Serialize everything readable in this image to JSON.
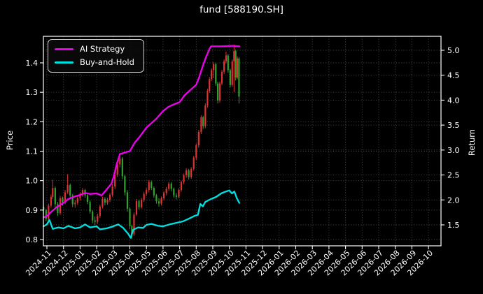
{
  "title": "fund [588190.SH]",
  "axes": {
    "x": {
      "tick_labels": [
        "2024-11",
        "2024-12",
        "2025-01",
        "2025-02",
        "2025-03",
        "2025-04",
        "2025-05",
        "2025-06",
        "2025-07",
        "2025-08",
        "2025-09",
        "2025-10",
        "2025-11",
        "2025-12",
        "2026-01",
        "2026-02",
        "2026-03",
        "2026-04",
        "2026-05",
        "2026-06",
        "2026-07",
        "2026-08",
        "2026-09",
        "2026-10"
      ]
    },
    "y_left": {
      "label": "Price",
      "ticks": [
        0.8,
        0.9,
        1.0,
        1.1,
        1.2,
        1.3,
        1.4
      ],
      "range": [
        0.779,
        1.49
      ]
    },
    "y_right": {
      "label": "Return",
      "ticks": [
        1.5,
        2.0,
        2.5,
        3.0,
        3.5,
        4.0,
        4.5,
        5.0
      ],
      "range": [
        1.08,
        5.28
      ]
    }
  },
  "legend": {
    "items": [
      {
        "label": "AI Strategy",
        "color": "#ee00ee"
      },
      {
        "label": "Buy-and-Hold",
        "color": "#00e0e0"
      }
    ]
  },
  "colors": {
    "background": "#000000",
    "text": "#ffffff",
    "spine": "#ffffff",
    "grid": "#666666",
    "candle_up": "#dd3333",
    "candle_down": "#2fa12f",
    "ai": "#ee00ee",
    "bh": "#00e0e0"
  },
  "chart_data": {
    "type": "candlestick+line",
    "title": "fund [588190.SH]",
    "x_unit": "months since 2024-11 tick (0 = 2024-11, 12 = 2025-11)",
    "grid": true,
    "legend_position": "upper left",
    "series": [
      {
        "name": "AI Strategy",
        "type": "line",
        "axis": "right",
        "color": "#ee00ee",
        "points": [
          [
            -0.2,
            1.65
          ],
          [
            0,
            1.68
          ],
          [
            0.3,
            1.77
          ],
          [
            0.6,
            1.86
          ],
          [
            1,
            1.94
          ],
          [
            1.3,
            2.02
          ],
          [
            1.6,
            2.06
          ],
          [
            2,
            2.1
          ],
          [
            2.3,
            2.14
          ],
          [
            2.6,
            2.12
          ],
          [
            3,
            2.13
          ],
          [
            3.3,
            2.09
          ],
          [
            3.6,
            2.21
          ],
          [
            3.9,
            2.33
          ],
          [
            4.05,
            2.5
          ],
          [
            4.2,
            2.71
          ],
          [
            4.4,
            2.92
          ],
          [
            4.7,
            2.95
          ],
          [
            5,
            2.98
          ],
          [
            5.3,
            3.15
          ],
          [
            5.6,
            3.27
          ],
          [
            6,
            3.45
          ],
          [
            6.3,
            3.54
          ],
          [
            6.6,
            3.63
          ],
          [
            7,
            3.78
          ],
          [
            7.3,
            3.86
          ],
          [
            7.6,
            3.91
          ],
          [
            8,
            3.96
          ],
          [
            8.3,
            4.1
          ],
          [
            8.6,
            4.19
          ],
          [
            9,
            4.31
          ],
          [
            9.2,
            4.48
          ],
          [
            9.4,
            4.69
          ],
          [
            9.6,
            4.87
          ],
          [
            9.8,
            5.03
          ],
          [
            9.9,
            5.08
          ],
          [
            10.5,
            5.08
          ],
          [
            11.2,
            5.09
          ],
          [
            11.6,
            5.08
          ]
        ]
      },
      {
        "name": "Buy-and-Hold",
        "type": "line",
        "axis": "right",
        "color": "#00e0e0",
        "points": [
          [
            -0.2,
            1.47
          ],
          [
            0,
            1.51
          ],
          [
            0.15,
            1.6
          ],
          [
            0.35,
            1.42
          ],
          [
            0.7,
            1.45
          ],
          [
            1,
            1.43
          ],
          [
            1.3,
            1.48
          ],
          [
            1.7,
            1.43
          ],
          [
            2,
            1.45
          ],
          [
            2.3,
            1.51
          ],
          [
            2.6,
            1.45
          ],
          [
            3,
            1.47
          ],
          [
            3.2,
            1.41
          ],
          [
            3.6,
            1.43
          ],
          [
            4,
            1.47
          ],
          [
            4.3,
            1.51
          ],
          [
            4.6,
            1.44
          ],
          [
            4.9,
            1.32
          ],
          [
            5.05,
            1.24
          ],
          [
            5.2,
            1.4
          ],
          [
            5.5,
            1.45
          ],
          [
            5.8,
            1.44
          ],
          [
            6,
            1.5
          ],
          [
            6.3,
            1.52
          ],
          [
            6.7,
            1.48
          ],
          [
            7,
            1.47
          ],
          [
            7.4,
            1.51
          ],
          [
            7.8,
            1.54
          ],
          [
            8.2,
            1.57
          ],
          [
            8.6,
            1.63
          ],
          [
            8.9,
            1.68
          ],
          [
            9.1,
            1.7
          ],
          [
            9.25,
            1.92
          ],
          [
            9.4,
            1.87
          ],
          [
            9.55,
            1.96
          ],
          [
            9.9,
            2.02
          ],
          [
            10.2,
            2.06
          ],
          [
            10.5,
            2.13
          ],
          [
            10.8,
            2.17
          ],
          [
            11,
            2.19
          ],
          [
            11.15,
            2.13
          ],
          [
            11.3,
            2.17
          ],
          [
            11.45,
            2.03
          ],
          [
            11.6,
            1.94
          ]
        ]
      },
      {
        "name": "fund price OHLC",
        "type": "candlestick",
        "axis": "left",
        "up_color": "#dd3333",
        "down_color": "#2fa12f",
        "candles": [
          [
            -0.2,
            0.91,
            0.918,
            0.885,
            0.9
          ],
          [
            -0.05,
            0.9,
            0.905,
            0.862,
            0.87
          ],
          [
            0.1,
            0.87,
            0.922,
            0.865,
            0.915
          ],
          [
            0.25,
            0.915,
            0.953,
            0.908,
            0.945
          ],
          [
            0.35,
            0.945,
            1.003,
            0.938,
            0.975
          ],
          [
            0.5,
            0.975,
            0.98,
            0.91,
            0.92
          ],
          [
            0.65,
            0.92,
            0.928,
            0.88,
            0.89
          ],
          [
            0.8,
            0.89,
            0.948,
            0.884,
            0.94
          ],
          [
            0.95,
            0.94,
            0.946,
            0.915,
            0.925
          ],
          [
            1.1,
            0.925,
            0.968,
            0.92,
            0.96
          ],
          [
            1.25,
            0.96,
            1.022,
            0.955,
            0.985
          ],
          [
            1.4,
            0.985,
            0.99,
            0.942,
            0.95
          ],
          [
            1.55,
            0.95,
            0.955,
            0.91,
            0.92
          ],
          [
            1.7,
            0.92,
            0.935,
            0.908,
            0.925
          ],
          [
            1.85,
            0.925,
            0.948,
            0.918,
            0.94
          ],
          [
            2.0,
            0.94,
            0.96,
            0.933,
            0.952
          ],
          [
            2.15,
            0.952,
            0.975,
            0.945,
            0.968
          ],
          [
            2.3,
            0.968,
            0.972,
            0.942,
            0.95
          ],
          [
            2.45,
            0.95,
            0.956,
            0.92,
            0.928
          ],
          [
            2.6,
            0.928,
            0.933,
            0.888,
            0.895
          ],
          [
            2.75,
            0.895,
            0.9,
            0.855,
            0.865
          ],
          [
            2.9,
            0.865,
            0.878,
            0.85,
            0.86
          ],
          [
            3.05,
            0.86,
            0.888,
            0.853,
            0.88
          ],
          [
            3.2,
            0.88,
            0.918,
            0.874,
            0.912
          ],
          [
            3.35,
            0.912,
            0.945,
            0.905,
            0.938
          ],
          [
            3.5,
            0.938,
            0.944,
            0.916,
            0.925
          ],
          [
            3.65,
            0.925,
            0.942,
            0.918,
            0.935
          ],
          [
            3.8,
            0.935,
            0.958,
            0.928,
            0.952
          ],
          [
            3.95,
            0.952,
            0.988,
            0.945,
            0.98
          ],
          [
            4.1,
            0.98,
            1.028,
            0.972,
            1.02
          ],
          [
            4.25,
            1.02,
            1.062,
            1.012,
            1.055
          ],
          [
            4.4,
            1.055,
            1.082,
            1.045,
            1.075
          ],
          [
            4.55,
            1.075,
            1.08,
            1.005,
            1.015
          ],
          [
            4.7,
            1.015,
            1.02,
            0.95,
            0.96
          ],
          [
            4.85,
            0.96,
            0.968,
            0.895,
            0.905
          ],
          [
            5.0,
            0.905,
            0.91,
            0.835,
            0.845
          ],
          [
            5.12,
            0.845,
            0.85,
            0.803,
            0.818
          ],
          [
            5.25,
            0.818,
            0.892,
            0.812,
            0.885
          ],
          [
            5.4,
            0.885,
            0.938,
            0.88,
            0.93
          ],
          [
            5.55,
            0.93,
            0.935,
            0.902,
            0.91
          ],
          [
            5.7,
            0.91,
            0.942,
            0.905,
            0.935
          ],
          [
            5.85,
            0.935,
            0.962,
            0.928,
            0.955
          ],
          [
            6.0,
            0.955,
            0.975,
            0.948,
            0.968
          ],
          [
            6.15,
            0.968,
            1.002,
            0.96,
            0.995
          ],
          [
            6.3,
            0.995,
            1.0,
            0.968,
            0.975
          ],
          [
            6.45,
            0.975,
            0.98,
            0.942,
            0.95
          ],
          [
            6.6,
            0.95,
            0.955,
            0.922,
            0.93
          ],
          [
            6.75,
            0.93,
            0.94,
            0.912,
            0.922
          ],
          [
            6.9,
            0.922,
            0.946,
            0.916,
            0.94
          ],
          [
            7.05,
            0.94,
            0.964,
            0.934,
            0.958
          ],
          [
            7.2,
            0.958,
            0.978,
            0.95,
            0.972
          ],
          [
            7.35,
            0.972,
            0.996,
            0.965,
            0.99
          ],
          [
            7.5,
            0.99,
            0.995,
            0.964,
            0.972
          ],
          [
            7.65,
            0.972,
            0.977,
            0.942,
            0.95
          ],
          [
            7.8,
            0.95,
            0.958,
            0.936,
            0.945
          ],
          [
            7.95,
            0.945,
            0.974,
            0.94,
            0.968
          ],
          [
            8.1,
            0.968,
            1.0,
            0.962,
            0.995
          ],
          [
            8.25,
            0.995,
            1.024,
            0.988,
            1.018
          ],
          [
            8.4,
            1.018,
            1.042,
            1.01,
            1.035
          ],
          [
            8.55,
            1.035,
            1.04,
            1.004,
            1.012
          ],
          [
            8.7,
            1.012,
            1.046,
            1.006,
            1.04
          ],
          [
            8.85,
            1.04,
            1.084,
            1.034,
            1.078
          ],
          [
            9.0,
            1.078,
            1.126,
            1.07,
            1.12
          ],
          [
            9.15,
            1.12,
            1.172,
            1.112,
            1.165
          ],
          [
            9.3,
            1.165,
            1.222,
            1.158,
            1.215
          ],
          [
            9.42,
            1.215,
            1.22,
            1.176,
            1.185
          ],
          [
            9.55,
            1.185,
            1.262,
            1.178,
            1.255
          ],
          [
            9.68,
            1.255,
            1.312,
            1.248,
            1.305
          ],
          [
            9.8,
            1.305,
            1.352,
            1.298,
            1.345
          ],
          [
            9.92,
            1.345,
            1.382,
            1.338,
            1.375
          ],
          [
            10.05,
            1.375,
            1.402,
            1.348,
            1.395
          ],
          [
            10.18,
            1.395,
            1.4,
            1.322,
            1.33
          ],
          [
            10.3,
            1.33,
            1.336,
            1.262,
            1.272
          ],
          [
            10.42,
            1.272,
            1.336,
            1.265,
            1.33
          ],
          [
            10.55,
            1.33,
            1.376,
            1.324,
            1.37
          ],
          [
            10.68,
            1.37,
            1.412,
            1.362,
            1.405
          ],
          [
            10.8,
            1.405,
            1.438,
            1.398,
            1.425
          ],
          [
            10.92,
            1.425,
            1.43,
            1.366,
            1.375
          ],
          [
            11.05,
            1.375,
            1.38,
            1.316,
            1.325
          ],
          [
            11.17,
            1.325,
            1.412,
            1.318,
            1.405
          ],
          [
            11.28,
            1.405,
            1.462,
            1.3,
            1.44
          ],
          [
            11.38,
            1.44,
            1.445,
            1.34,
            1.35
          ],
          [
            11.48,
            1.35,
            1.422,
            1.344,
            1.415
          ],
          [
            11.58,
            1.415,
            1.42,
            1.262,
            1.285
          ]
        ]
      }
    ]
  }
}
